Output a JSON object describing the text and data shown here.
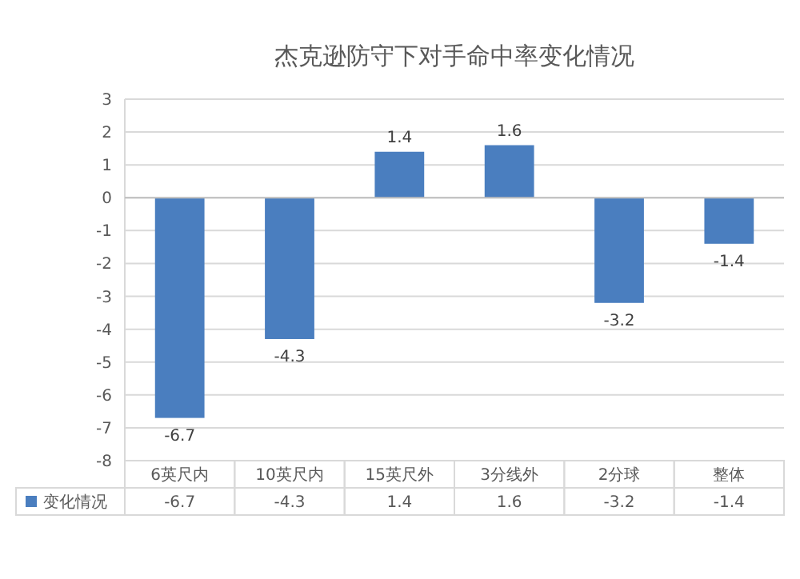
{
  "chart_data": {
    "type": "bar",
    "title": "杰克逊防守下对手命中率变化情况",
    "categories": [
      "6英尺内",
      "10英尺内",
      "15英尺外",
      "3分线外",
      "2分球",
      "整体"
    ],
    "series": [
      {
        "name": "变化情况",
        "color": "#4a7ebf",
        "values": [
          -6.7,
          -4.3,
          1.4,
          1.6,
          -3.2,
          -1.4
        ],
        "value_labels": [
          "-6.7",
          "-4.3",
          "1.4",
          "1.6",
          "-3.2",
          "-1.4"
        ]
      }
    ],
    "annotations": [
      "-6.7",
      "-4.3",
      "1.4",
      "1.6",
      "-3.2",
      "-1.4"
    ],
    "ylim": [
      -8,
      3
    ],
    "yticks": [
      -8,
      -7,
      -6,
      -5,
      -4,
      -3,
      -2,
      -1,
      0,
      1,
      2,
      3
    ],
    "grid": "y",
    "data_labels": true,
    "legend": "bottom"
  }
}
